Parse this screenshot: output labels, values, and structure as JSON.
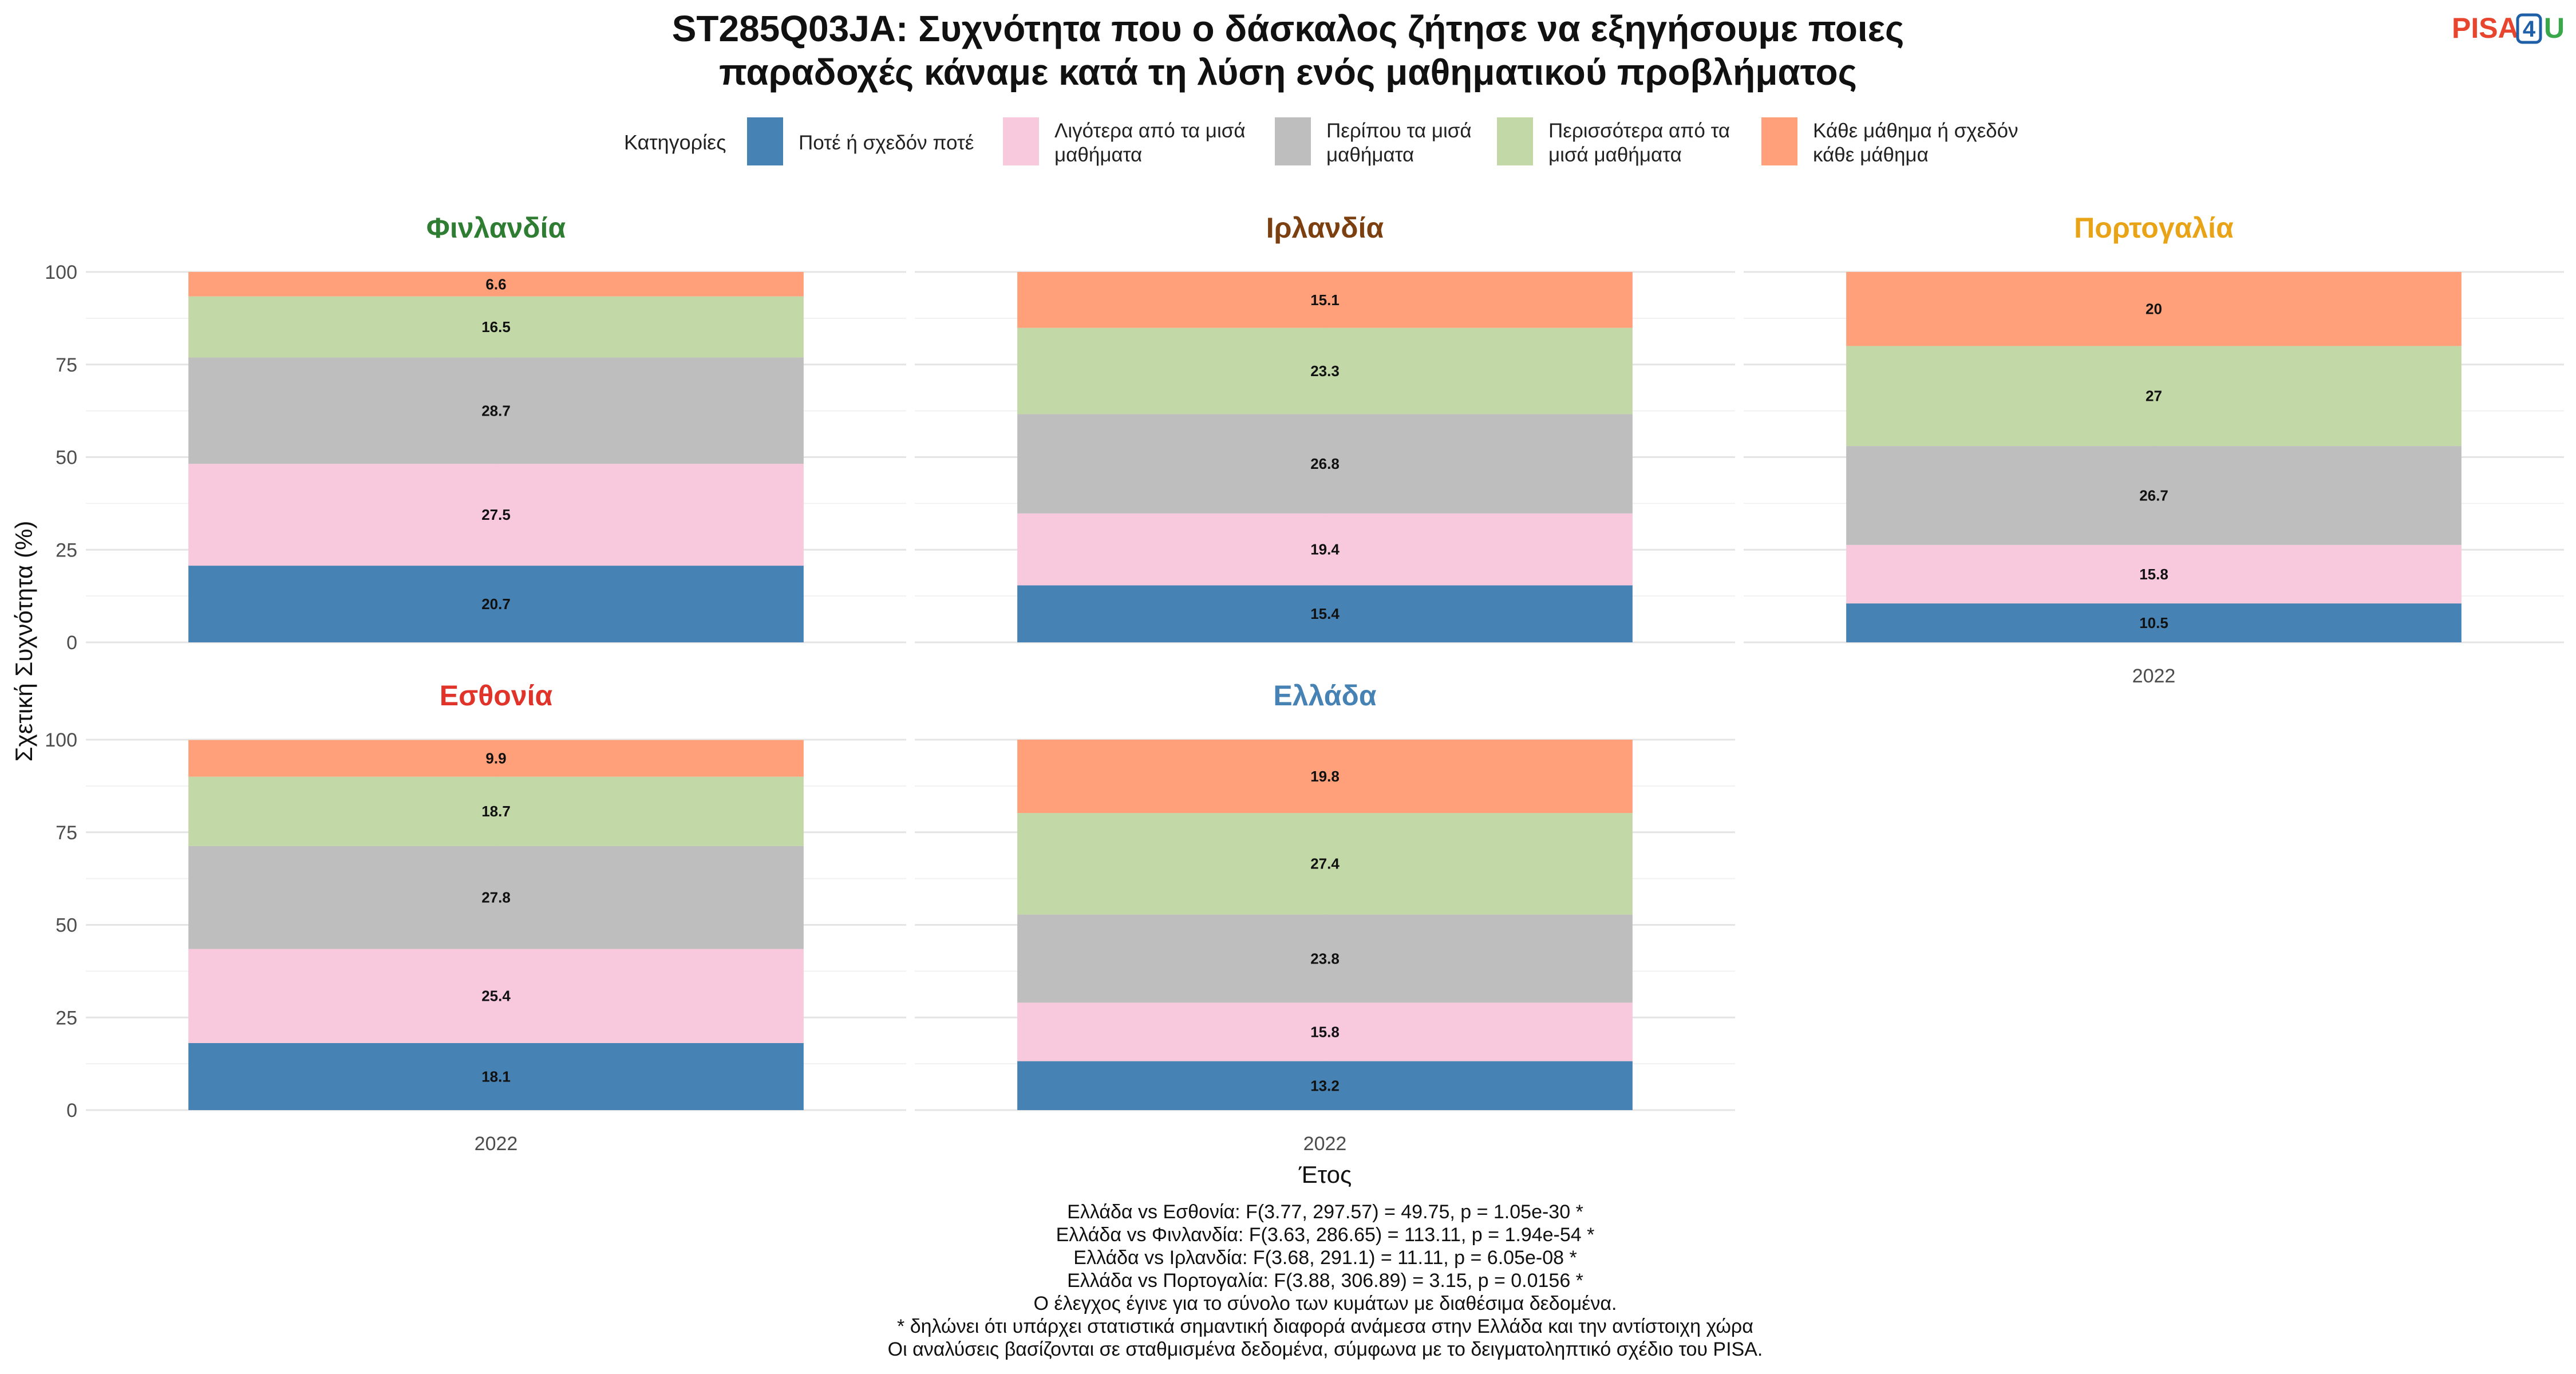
{
  "title": {
    "lines": [
      "ST285Q03JA: Συχνότητα που ο δάσκαλος ζήτησε να εξηγήσουμε ποιες",
      "παραδοχές κάναμε κατά τη λύση ενός μαθηματικού προβλήματος"
    ]
  },
  "logo": {
    "pisa": "PISA",
    "four": "4",
    "u": "U",
    "pisa_color": "#E8452E",
    "four_color": "#1F5FA8",
    "u_color": "#3AA74A"
  },
  "legend": {
    "title": "Κατηγορίες",
    "items": [
      {
        "lines": [
          "Ποτέ ή σχεδόν ποτέ"
        ],
        "color": "#4682B4"
      },
      {
        "lines": [
          "Λιγότερα από τα μισά",
          "μαθήματα"
        ],
        "color": "#F8C8DC"
      },
      {
        "lines": [
          "Περίπου τα μισά",
          "μαθήματα"
        ],
        "color": "#BEBEBE"
      },
      {
        "lines": [
          "Περισσότερα από τα",
          "μισά μαθήματα"
        ],
        "color": "#C2D8A6"
      },
      {
        "lines": [
          "Κάθε μάθημα ή σχεδόν",
          "κάθε μάθημα"
        ],
        "color": "#FFA07A"
      }
    ]
  },
  "axes": {
    "ylabel": "Σχετική Συχνότητα (%)",
    "xlabel": "Έτος",
    "yticks": [
      "0",
      "25",
      "50",
      "75",
      "100"
    ]
  },
  "caption": {
    "lines": [
      "Ελλάδα vs Εσθονία: F(3.77, 297.57) = 49.75, p = 1.05e-30 *",
      "Ελλάδα vs Φινλανδία: F(3.63, 286.65) = 113.11, p = 1.94e-54 *",
      "Ελλάδα vs Ιρλανδία: F(3.68, 291.1) = 11.11, p = 6.05e-08 *",
      "Ελλάδα vs Πορτογαλία: F(3.88, 306.89) = 3.15, p = 0.0156 *",
      "Ο έλεγχος έγινε για το σύνολο των κυμάτων με διαθέσιμα δεδομένα.",
      "* δηλώνει ότι υπάρχει στατιστικά σημαντική διαφορά ανάμεσα στην Ελλάδα και την αντίστοιχη χώρα",
      "Οι αναλύσεις βασίζονται σε σταθμισμένα δεδομένα, σύμφωνα με το δειγματοληπτικό σχέδιο του PISA."
    ]
  },
  "chart_data": {
    "type": "bar",
    "stacked": true,
    "ylim": [
      0,
      100
    ],
    "categories": [
      "2022"
    ],
    "series_names": [
      "Ποτέ ή σχεδόν ποτέ",
      "Λιγότερα από τα μισά μαθήματα",
      "Περίπου τα μισά μαθήματα",
      "Περισσότερα από τα μισά μαθήματα",
      "Κάθε μάθημα ή σχεδόν κάθε μάθημα"
    ],
    "series_colors": [
      "#4682B4",
      "#F8C8DC",
      "#BEBEBE",
      "#C2D8A6",
      "#FFA07A"
    ],
    "panels": [
      {
        "name": "Φινλανδία",
        "color": "#2E7D32",
        "x": "2022",
        "values": [
          20.7,
          27.5,
          28.7,
          16.5,
          6.6
        ],
        "labels": [
          "20.7",
          "27.5",
          "28.7",
          "16.5",
          "6.6"
        ]
      },
      {
        "name": "Ιρλανδία",
        "color": "#7B3F10",
        "x": "2022",
        "values": [
          15.4,
          19.4,
          26.8,
          23.3,
          15.1
        ],
        "labels": [
          "15.4",
          "19.4",
          "26.8",
          "23.3",
          "15.1"
        ]
      },
      {
        "name": "Πορτογαλία",
        "color": "#E8A317",
        "x": "2022",
        "values": [
          10.5,
          15.8,
          26.7,
          27,
          20
        ],
        "labels": [
          "10.5",
          "15.8",
          "26.7",
          "27",
          "20"
        ]
      },
      {
        "name": "Εσθονία",
        "color": "#E0342B",
        "x": "2022",
        "values": [
          18.1,
          25.4,
          27.8,
          18.7,
          9.9
        ],
        "labels": [
          "18.1",
          "25.4",
          "27.8",
          "18.7",
          "9.9"
        ]
      },
      {
        "name": "Ελλάδα",
        "color": "#4682B4",
        "x": "2022",
        "values": [
          13.2,
          15.8,
          23.8,
          27.4,
          19.8
        ],
        "labels": [
          "13.2",
          "15.8",
          "23.8",
          "27.4",
          "19.8"
        ]
      }
    ]
  }
}
